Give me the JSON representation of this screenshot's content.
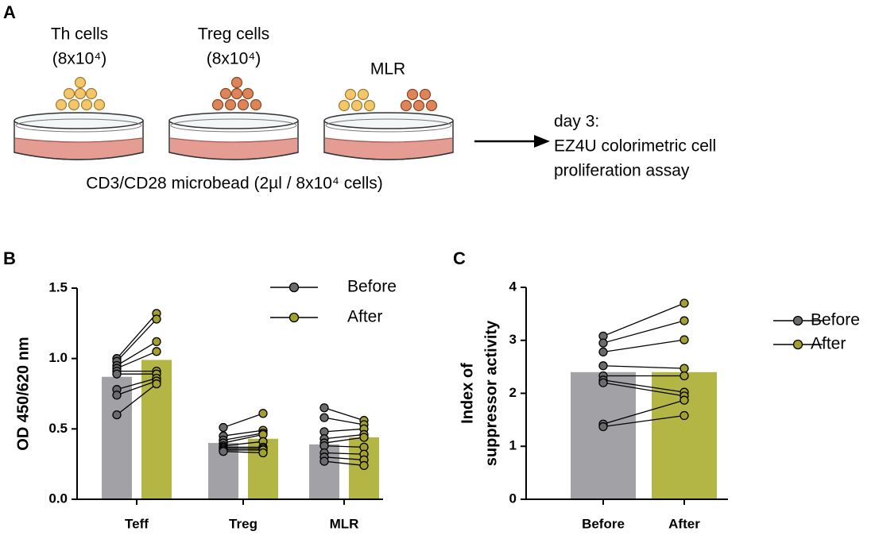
{
  "panel_a": {
    "label": "A",
    "th_title": "Th cells",
    "th_count": "(8x10⁴)",
    "treg_title": "Treg cells",
    "treg_count": "(8x10⁴)",
    "mlr_title": "MLR",
    "bead_label": "CD3/CD28 microbead (2µl / 8x10⁴ cells)",
    "assay_lines": [
      "day 3:",
      "EZ4U colorimetric cell",
      "proliferation assay"
    ]
  },
  "chart_data": [
    {
      "type": "bar",
      "panel_label": "B",
      "ylabel": "OD 450/620 nm",
      "categories": [
        "Teff",
        "Treg",
        "MLR"
      ],
      "series": [
        {
          "name": "Before",
          "color": "#a2a2a6",
          "marker_color": "#6b6b6e",
          "values": [
            0.87,
            0.4,
            0.39
          ],
          "points": [
            [
              1.0,
              0.98,
              0.95,
              0.93,
              0.91,
              0.89,
              0.78,
              0.74,
              0.6
            ],
            [
              0.51,
              0.45,
              0.42,
              0.4,
              0.38,
              0.37,
              0.36,
              0.35,
              0.34
            ],
            [
              0.65,
              0.58,
              0.48,
              0.43,
              0.4,
              0.38,
              0.33,
              0.3,
              0.27
            ]
          ]
        },
        {
          "name": "After",
          "color": "#b3b545",
          "marker_color": "#a3a12c",
          "values": [
            0.99,
            0.43,
            0.44
          ],
          "points": [
            [
              1.32,
              1.28,
              1.12,
              1.05,
              0.91,
              0.89,
              0.86,
              0.84,
              0.82
            ],
            [
              0.61,
              0.49,
              0.47,
              0.46,
              0.41,
              0.37,
              0.36,
              0.35,
              0.33
            ],
            [
              0.56,
              0.53,
              0.5,
              0.46,
              0.44,
              0.37,
              0.32,
              0.28,
              0.24
            ]
          ]
        }
      ],
      "ylim": [
        0,
        1.5
      ],
      "yticks": [
        {
          "value": 0,
          "label": "0.0"
        },
        {
          "value": 0.5,
          "label": "0.5"
        },
        {
          "value": 1,
          "label": "1.0"
        },
        {
          "value": 1.5,
          "label": "1.5"
        }
      ],
      "grid": false,
      "legend": "top-right"
    },
    {
      "type": "bar",
      "panel_label": "C",
      "ylabel_lines": [
        "Index of",
        "suppressor activity"
      ],
      "series": [
        {
          "name": "Before",
          "color": "#a2a2a6",
          "marker_color": "#6b6b6e",
          "values": [
            2.4
          ],
          "points": [
            [
              3.08,
              2.95,
              2.78,
              2.52,
              2.33,
              2.25,
              2.2,
              1.42,
              1.37
            ]
          ]
        },
        {
          "name": "After",
          "color": "#b3b545",
          "marker_color": "#a3a12c",
          "values": [
            2.4
          ],
          "points": [
            [
              3.7,
              3.37,
              3.01,
              2.47,
              2.33,
              2.02,
              1.95,
              1.87,
              1.58
            ]
          ]
        }
      ],
      "ylim": [
        0,
        4
      ],
      "yticks": [
        0,
        1,
        2,
        3,
        4
      ],
      "grid": false,
      "legend": "top-right"
    }
  ]
}
